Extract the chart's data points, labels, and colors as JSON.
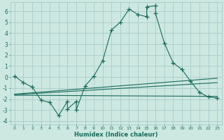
{
  "xlabel": "Humidex (Indice chaleur)",
  "bg_color": "#cce8e0",
  "grid_color": "#aacccc",
  "line_color": "#1a6b5e",
  "xlim": [
    -0.5,
    23.5
  ],
  "ylim": [
    -4.3,
    6.8
  ],
  "yticks": [
    -4,
    -3,
    -2,
    -1,
    0,
    1,
    2,
    3,
    4,
    5,
    6
  ],
  "xtick_labels": [
    "0",
    "1",
    "2",
    "3",
    "4",
    "5",
    "6",
    "7",
    "8",
    "9",
    "10",
    "11",
    "12",
    "13",
    "14",
    "15",
    "16",
    "17",
    "18",
    "19",
    "20",
    "21",
    "22",
    "23"
  ],
  "series1_x": [
    0,
    1,
    2,
    3,
    4,
    5,
    6,
    6,
    7,
    7,
    8,
    9,
    10,
    11,
    12,
    13,
    14,
    15,
    15,
    16,
    16,
    17,
    18,
    19,
    20,
    21,
    22,
    23
  ],
  "series1_y": [
    0.1,
    -0.5,
    -0.9,
    -2.1,
    -2.3,
    -3.5,
    -2.2,
    -2.9,
    -2.2,
    -3.0,
    -0.8,
    0.1,
    1.5,
    4.3,
    5.0,
    6.2,
    5.7,
    5.5,
    6.4,
    6.5,
    5.8,
    3.1,
    1.3,
    0.7,
    -0.4,
    -1.4,
    -1.8,
    -1.9
  ],
  "line1_x": [
    0,
    23
  ],
  "line1_y": [
    -1.65,
    -1.75
  ],
  "line2_x": [
    0,
    23
  ],
  "line2_y": [
    -1.55,
    -0.1
  ],
  "line3_x": [
    0,
    23
  ],
  "line3_y": [
    -1.6,
    -0.5
  ]
}
